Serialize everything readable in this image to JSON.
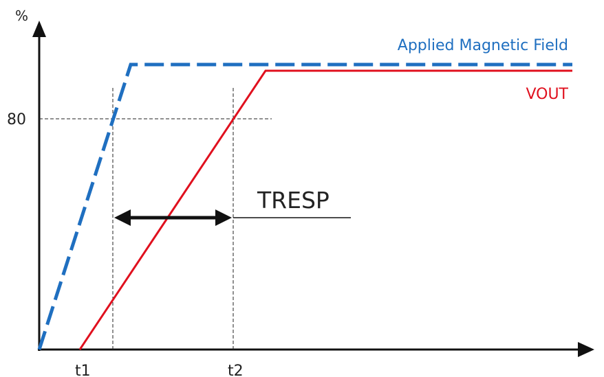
{
  "diagram": {
    "y_axis_label": "%",
    "y_tick_label": "80",
    "x_tick_labels": [
      "t1",
      "t2"
    ],
    "response_label": "TRESP",
    "legend": {
      "field": "Applied Magnetic Field",
      "vout": "VOUT"
    },
    "colors": {
      "field": "#1f6fc0",
      "vout": "#e0101e",
      "axis": "#111111",
      "guide": "#222222",
      "arrow": "#111111"
    }
  }
}
